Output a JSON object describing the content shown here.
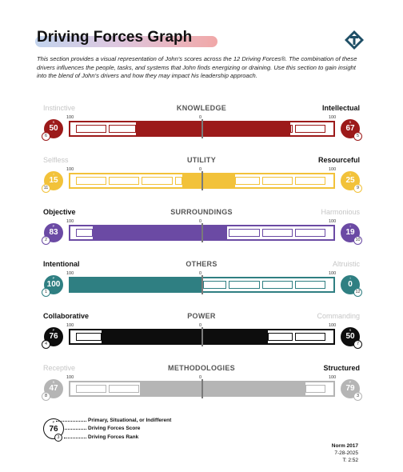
{
  "page": {
    "title": "Driving Forces Graph",
    "intro": "This section provides a visual representation of John's scores across the 12 Driving Forces®.  The combination of these drivers influences the people, tasks, and systems that John finds energizing or draining.  Use this section to gain insight into the blend of John's drivers and how they may impact his leadership approach."
  },
  "scale": {
    "left": "100",
    "center": "0",
    "right": "100"
  },
  "rows": [
    {
      "left_label": "Instinctive",
      "right_label": "Intellectual",
      "name": "KNOWLEDGE",
      "color": "#9c1a1a",
      "left_dim": true,
      "right_dim": false,
      "left_score": "50",
      "left_tag": "S",
      "left_rank": "6",
      "right_score": "67",
      "right_tag": "S",
      "right_rank": "5",
      "left_value": 50,
      "right_value": 67
    },
    {
      "left_label": "Selfless",
      "right_label": "Resourceful",
      "name": "UTILITY",
      "color": "#f2c23a",
      "left_dim": true,
      "right_dim": false,
      "left_score": "15",
      "left_tag": "I",
      "left_rank": "11",
      "right_score": "25",
      "right_tag": "I",
      "right_rank": "9",
      "left_value": 15,
      "right_value": 25
    },
    {
      "left_label": "Objective",
      "right_label": "Harmonious",
      "name": "SURROUNDINGS",
      "color": "#6b4aa4",
      "left_dim": false,
      "right_dim": true,
      "left_score": "83",
      "left_tag": "P",
      "left_rank": "2",
      "right_score": "19",
      "right_tag": "I",
      "right_rank": "10",
      "left_value": 83,
      "right_value": 19
    },
    {
      "left_label": "Intentional",
      "right_label": "Altruistic",
      "name": "OTHERS",
      "color": "#2f7f82",
      "left_dim": false,
      "right_dim": true,
      "left_score": "100",
      "left_tag": "P",
      "left_rank": "1",
      "right_score": "0",
      "right_tag": "I",
      "right_rank": "12",
      "left_value": 100,
      "right_value": 0
    },
    {
      "left_label": "Collaborative",
      "right_label": "Commanding",
      "name": "POWER",
      "color": "#0d0d0d",
      "left_dim": false,
      "right_dim": true,
      "left_score": "76",
      "left_tag": "P",
      "left_rank": "4",
      "right_score": "50",
      "right_tag": "S",
      "right_rank": "7",
      "left_value": 76,
      "right_value": 50
    },
    {
      "left_label": "Receptive",
      "right_label": "Structured",
      "name": "METHODOLOGIES",
      "color": "#b5b5b5",
      "left_dim": true,
      "right_dim": false,
      "left_score": "47",
      "left_tag": "S",
      "left_rank": "8",
      "right_score": "79",
      "right_tag": "P",
      "right_rank": "3",
      "left_value": 47,
      "right_value": 79
    }
  ],
  "legend": {
    "tag": "P",
    "score": "76",
    "rank": "3",
    "line1": "Primary, Situational, or Indifferent",
    "line2": "Driving Forces Score",
    "line3": "Driving Forces Rank"
  },
  "norm": {
    "title": "Norm 2017",
    "date": "7-28-2025",
    "time": "T: 2:52"
  }
}
